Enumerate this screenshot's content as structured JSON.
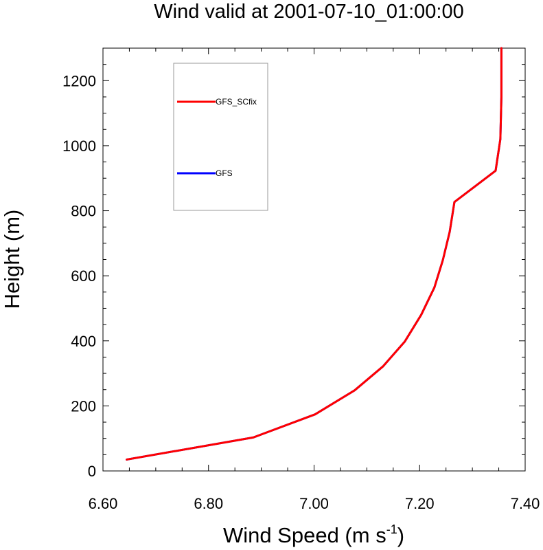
{
  "chart_data": {
    "type": "line",
    "title": "Wind valid at 2001-07-10_01:00:00",
    "xlabel": "Wind Speed (m s",
    "xlabel_sup": "-1",
    "xlabel_end": ")",
    "ylabel": "Height (m)",
    "xlim": [
      6.6,
      7.4
    ],
    "ylim": [
      0,
      1300
    ],
    "x_ticks": [
      6.6,
      6.8,
      7.0,
      7.2,
      7.4
    ],
    "x_tick_labels": [
      "6.60",
      "6.80",
      "7.00",
      "7.20",
      "7.40"
    ],
    "y_ticks": [
      0,
      200,
      400,
      600,
      800,
      1000,
      1200
    ],
    "y_tick_labels": [
      "0",
      "200",
      "400",
      "600",
      "800",
      "1000",
      "1200"
    ],
    "grid": false,
    "legend_position": "top-left",
    "series": [
      {
        "name": "GFS",
        "color": "#0000ff",
        "x": [
          6.645,
          6.885,
          7.002,
          7.077,
          7.131,
          7.172,
          7.203,
          7.228,
          7.244,
          7.257,
          7.266,
          7.344,
          7.353,
          7.355,
          7.355
        ],
        "y": [
          35,
          103,
          174,
          248,
          322,
          398,
          480,
          564,
          648,
          735,
          827,
          923,
          1020,
          1150,
          1300
        ]
      },
      {
        "name": "GFS_SCfix",
        "color": "#ff0000",
        "x": [
          6.645,
          6.885,
          7.002,
          7.077,
          7.131,
          7.172,
          7.203,
          7.228,
          7.244,
          7.257,
          7.266,
          7.344,
          7.353,
          7.355,
          7.355
        ],
        "y": [
          35,
          103,
          174,
          248,
          322,
          398,
          480,
          564,
          648,
          735,
          827,
          923,
          1020,
          1150,
          1300
        ]
      }
    ],
    "legend_order": [
      "GFS_SCfix",
      "GFS"
    ]
  }
}
